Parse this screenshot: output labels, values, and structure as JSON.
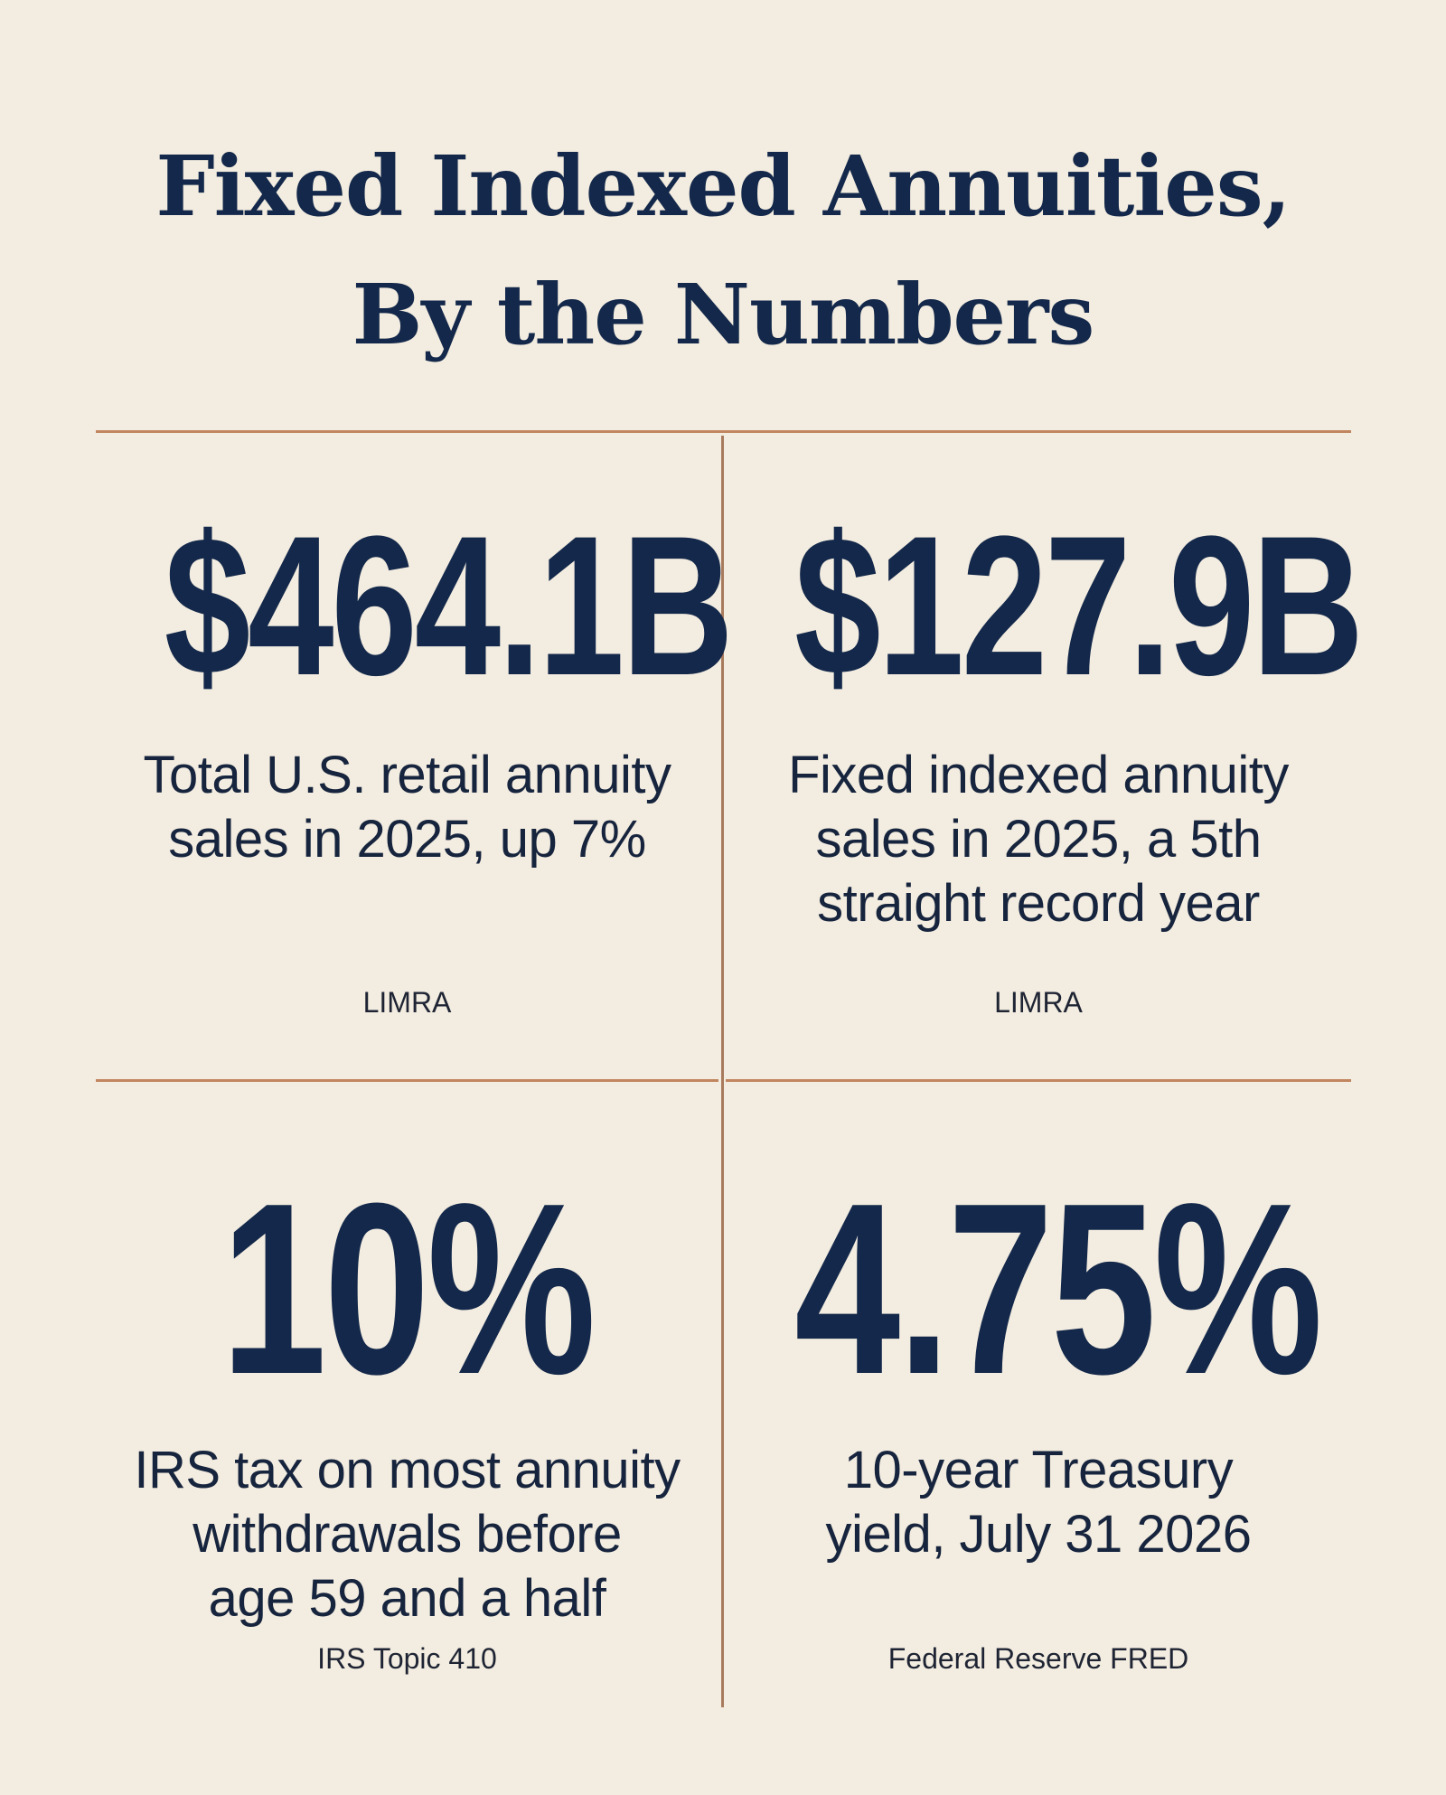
{
  "title": {
    "line1": "Fixed Indexed Annuities,",
    "line2": "By the Numbers"
  },
  "stats": [
    {
      "value": "$464.1B",
      "description": [
        "Total U.S. retail annuity",
        "sales in 2025, up 7%"
      ],
      "source": "LIMRA"
    },
    {
      "value": "$127.9B",
      "description": [
        "Fixed indexed annuity",
        "sales in 2025, a 5th",
        "straight record year"
      ],
      "source": "LIMRA"
    },
    {
      "value": "10%",
      "description": [
        "IRS tax on most annuity",
        "withdrawals before",
        "age 59 and a half"
      ],
      "source": "IRS Topic 410"
    },
    {
      "value": "4.75%",
      "description": [
        "10-year Treasury",
        "yield, July 31 2026"
      ],
      "source": "Federal Reserve FRED"
    }
  ],
  "colors": {
    "background": "#f3ece0",
    "navy": "#13284a",
    "divider": "#c1865f"
  }
}
